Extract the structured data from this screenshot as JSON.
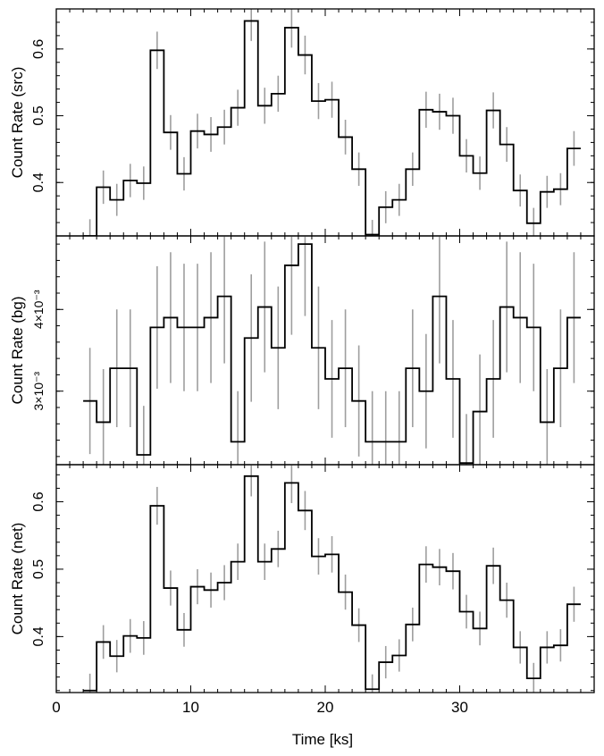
{
  "chart_data": {
    "type": "line",
    "style": "step histogram with vertical error bars",
    "bin_width": 1,
    "xlabel": "Time [ks]",
    "xlim": [
      0,
      40
    ],
    "x_ticks": [
      0,
      10,
      20,
      30
    ],
    "x_tick_labels": [
      "0",
      "10",
      "20",
      "30"
    ],
    "x": [
      2.5,
      3.5,
      4.5,
      5.5,
      6.5,
      7.5,
      8.5,
      9.5,
      10.5,
      11.5,
      12.5,
      13.5,
      14.5,
      15.5,
      16.5,
      17.5,
      18.5,
      19.5,
      20.5,
      21.5,
      22.5,
      23.5,
      24.5,
      25.5,
      26.5,
      27.5,
      28.5,
      29.5,
      30.5,
      31.5,
      32.5,
      33.5,
      34.5,
      35.5,
      36.5,
      37.5,
      38.5
    ],
    "panels": [
      {
        "ylabel": "Count Rate (src)",
        "ylim": [
          0.32,
          0.66
        ],
        "y_ticks": [
          0.4,
          0.5,
          0.6
        ],
        "y_tick_labels": [
          "0.4",
          "0.5",
          "0.6"
        ],
        "values": [
          0.32,
          0.393,
          0.374,
          0.403,
          0.399,
          0.598,
          0.475,
          0.413,
          0.477,
          0.472,
          0.483,
          0.512,
          0.642,
          0.515,
          0.533,
          0.632,
          0.591,
          0.522,
          0.524,
          0.468,
          0.42,
          0.322,
          0.363,
          0.374,
          0.42,
          0.509,
          0.506,
          0.5,
          0.44,
          0.414,
          0.508,
          0.457,
          0.388,
          0.339,
          0.386,
          0.39,
          0.451
        ],
        "errors": [
          0.025,
          0.025,
          0.024,
          0.025,
          0.025,
          0.028,
          0.026,
          0.025,
          0.026,
          0.026,
          0.026,
          0.027,
          0.03,
          0.027,
          0.027,
          0.03,
          0.029,
          0.027,
          0.027,
          0.026,
          0.025,
          0.022,
          0.024,
          0.024,
          0.025,
          0.027,
          0.027,
          0.027,
          0.025,
          0.025,
          0.027,
          0.026,
          0.024,
          0.023,
          0.024,
          0.024,
          0.026
        ]
      },
      {
        "ylabel": "Count Rate (bg)",
        "ylim": [
          0.0021,
          0.0049
        ],
        "y_ticks": [
          0.003,
          0.004
        ],
        "y_tick_labels": [
          "3×10⁻³",
          "4×10⁻³"
        ],
        "values": [
          0.00288,
          0.00262,
          0.00328,
          0.00328,
          0.00222,
          0.00378,
          0.0039,
          0.00378,
          0.00378,
          0.0039,
          0.00416,
          0.00238,
          0.00365,
          0.00403,
          0.00353,
          0.00454,
          0.0048,
          0.00353,
          0.00315,
          0.00328,
          0.00288,
          0.00238,
          0.00238,
          0.00238,
          0.00328,
          0.003,
          0.00416,
          0.00315,
          0.00212,
          0.00275,
          0.00315,
          0.00403,
          0.0039,
          0.00378,
          0.00262,
          0.00328,
          0.0039
        ],
        "errors": [
          0.00065,
          0.00065,
          0.00072,
          0.00072,
          0.0006,
          0.00075,
          0.0008,
          0.00078,
          0.00078,
          0.0008,
          0.00082,
          0.00062,
          0.00078,
          0.0008,
          0.00075,
          0.00085,
          0.00088,
          0.00075,
          0.00072,
          0.00072,
          0.00068,
          0.00062,
          0.00062,
          0.00062,
          0.00072,
          0.0007,
          0.00082,
          0.00072,
          0.0006,
          0.0007,
          0.00072,
          0.0008,
          0.0008,
          0.00078,
          0.00065,
          0.00072,
          0.0008
        ]
      },
      {
        "ylabel": "Count Rate (net)",
        "ylim": [
          0.317,
          0.655
        ],
        "y_ticks": [
          0.4,
          0.5,
          0.6
        ],
        "y_tick_labels": [
          "0.4",
          "0.5",
          "0.6"
        ],
        "values": [
          0.32,
          0.392,
          0.371,
          0.401,
          0.398,
          0.594,
          0.472,
          0.41,
          0.474,
          0.469,
          0.48,
          0.511,
          0.638,
          0.511,
          0.53,
          0.628,
          0.587,
          0.519,
          0.522,
          0.466,
          0.417,
          0.322,
          0.362,
          0.372,
          0.418,
          0.507,
          0.503,
          0.497,
          0.437,
          0.412,
          0.505,
          0.454,
          0.384,
          0.338,
          0.384,
          0.387,
          0.448
        ],
        "errors": [
          0.025,
          0.025,
          0.024,
          0.025,
          0.025,
          0.028,
          0.026,
          0.025,
          0.026,
          0.026,
          0.026,
          0.027,
          0.03,
          0.027,
          0.027,
          0.03,
          0.029,
          0.027,
          0.027,
          0.026,
          0.025,
          0.022,
          0.024,
          0.024,
          0.025,
          0.027,
          0.027,
          0.027,
          0.025,
          0.025,
          0.027,
          0.026,
          0.024,
          0.023,
          0.024,
          0.024,
          0.026
        ]
      }
    ],
    "colors": {
      "line": "#000000",
      "error_bars": "#9e9e9e"
    },
    "grid": false,
    "legend": "none"
  }
}
